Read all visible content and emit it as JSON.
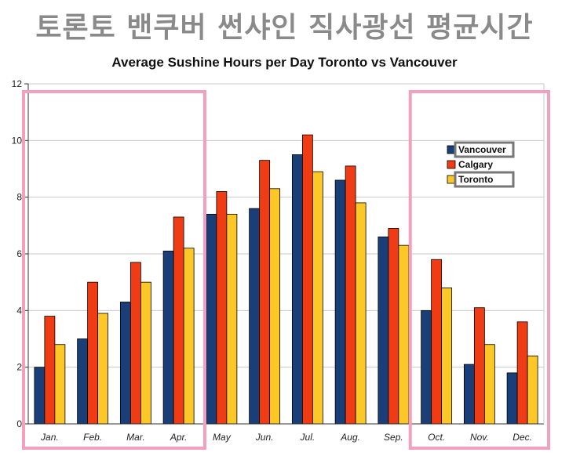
{
  "banner": {
    "text": "토론토 밴쿠버 썬샤인 직사광선 평균시간"
  },
  "colors": {
    "vancouver": "#1a3f78",
    "calgary": "#f03c14",
    "toronto": "#fbc828",
    "highlight": "#f2a0bd",
    "legend_box": "#777777",
    "grid": "#c8c8c8"
  },
  "chart_data": {
    "type": "bar",
    "title": "Average Sushine Hours per Day Toronto vs Vancouver",
    "xlabel": "",
    "ylabel": "",
    "ylim": [
      0,
      12
    ],
    "yticks": [
      "0",
      "2",
      "4",
      "6",
      "8",
      "10",
      "12"
    ],
    "grid": true,
    "legend_position": "right",
    "categories": [
      "Jan.",
      "Feb.",
      "Mar.",
      "Apr.",
      "May",
      "Jun.",
      "Jul.",
      "Aug.",
      "Sep.",
      "Oct.",
      "Nov.",
      "Dec."
    ],
    "series": [
      {
        "name": "Vancouver",
        "values": [
          2.0,
          3.0,
          4.3,
          6.1,
          7.4,
          7.6,
          9.5,
          8.6,
          6.6,
          4.0,
          2.1,
          1.8
        ]
      },
      {
        "name": "Calgary",
        "values": [
          3.8,
          5.0,
          5.7,
          7.3,
          8.2,
          9.3,
          10.2,
          9.1,
          6.9,
          5.8,
          4.1,
          3.6
        ]
      },
      {
        "name": "Toronto",
        "values": [
          2.8,
          3.9,
          5.0,
          6.2,
          7.4,
          8.3,
          8.9,
          7.8,
          6.3,
          4.8,
          2.8,
          2.4
        ]
      }
    ],
    "highlighted_categories": [
      [
        "Jan.",
        "Apr."
      ],
      [
        "Oct.",
        "Dec."
      ]
    ],
    "legend_boxed_series": [
      "Vancouver",
      "Toronto"
    ]
  }
}
